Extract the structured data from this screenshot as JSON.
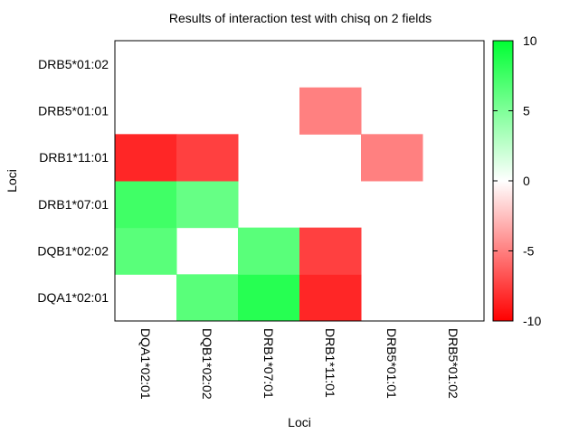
{
  "chart_data": {
    "type": "heatmap",
    "title": "Results of interaction test with chisq on 2 fields",
    "xlabel": "Loci",
    "ylabel": "Loci",
    "x_categories": [
      "DQA1*02:01",
      "DQB1*02:02",
      "DRB1*07:01",
      "DRB1*11:01",
      "DRB5*01:01",
      "DRB5*01:02"
    ],
    "y_categories": [
      "DQA1*02:01",
      "DQB1*02:02",
      "DRB1*07:01",
      "DRB1*11:01",
      "DRB5*01:01",
      "DRB5*01:02"
    ],
    "cells": [
      {
        "x": "DQB1*02:02",
        "y": "DQA1*02:01",
        "value": 6.5
      },
      {
        "x": "DRB1*07:01",
        "y": "DQA1*02:01",
        "value": 8.5
      },
      {
        "x": "DRB1*11:01",
        "y": "DQA1*02:01",
        "value": -8.5
      },
      {
        "x": "DQA1*02:01",
        "y": "DQB1*02:02",
        "value": 6.5
      },
      {
        "x": "DRB1*07:01",
        "y": "DQB1*02:02",
        "value": 6.5
      },
      {
        "x": "DRB1*11:01",
        "y": "DQB1*02:02",
        "value": -7.5
      },
      {
        "x": "DQA1*02:01",
        "y": "DRB1*07:01",
        "value": 7.5
      },
      {
        "x": "DQB1*02:02",
        "y": "DRB1*07:01",
        "value": 6.0
      },
      {
        "x": "DQA1*02:01",
        "y": "DRB1*11:01",
        "value": -8.5
      },
      {
        "x": "DQB1*02:02",
        "y": "DRB1*11:01",
        "value": -7.5
      },
      {
        "x": "DRB5*01:01",
        "y": "DRB1*11:01",
        "value": -5.0
      },
      {
        "x": "DRB1*11:01",
        "y": "DRB5*01:01",
        "value": -5.0
      }
    ],
    "colorbar": {
      "min": -10,
      "max": 10,
      "ticks": [
        "10",
        "5",
        "0",
        "-5",
        "-10"
      ],
      "tick_values": [
        10,
        5,
        0,
        -5,
        -10
      ],
      "low_color": "#ff0000",
      "mid_color": "#ffffff",
      "high_color": "#00ff33"
    }
  }
}
